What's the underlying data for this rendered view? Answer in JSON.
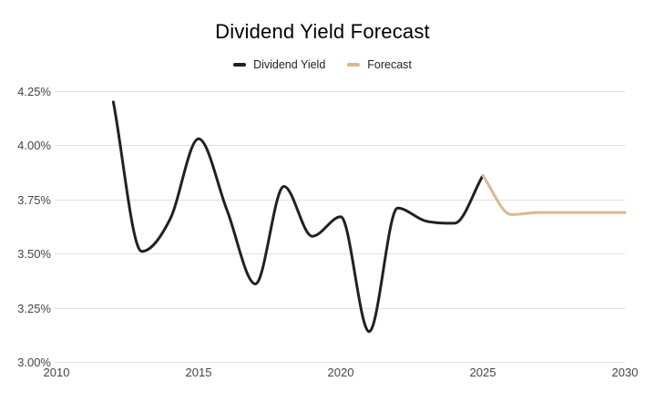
{
  "chart_data": {
    "type": "line",
    "title": "Dividend Yield Forecast",
    "legend_position": "top",
    "grid": true,
    "legend": [
      {
        "label": "Dividend Yield",
        "color": "#212121"
      },
      {
        "label": "Forecast",
        "color": "#D9B991"
      }
    ],
    "x": {
      "min": 2010,
      "max": 2030,
      "ticks": [
        2010,
        2015,
        2020,
        2025,
        2030
      ]
    },
    "y": {
      "min": 3.0,
      "max": 4.25,
      "ticks": [
        {
          "value": 4.25,
          "label": "4.25%"
        },
        {
          "value": 4.0,
          "label": "4.00%"
        },
        {
          "value": 3.75,
          "label": "3.75%"
        },
        {
          "value": 3.5,
          "label": "3.50%"
        },
        {
          "value": 3.25,
          "label": "3.25%"
        },
        {
          "value": 3.0,
          "label": "3.00%"
        }
      ]
    },
    "series": [
      {
        "name": "Dividend Yield",
        "color": "#212121",
        "points": [
          {
            "x": 2012,
            "y": 4.2
          },
          {
            "x": 2013,
            "y": 3.51
          },
          {
            "x": 2014,
            "y": 3.66
          },
          {
            "x": 2015,
            "y": 4.03
          },
          {
            "x": 2016,
            "y": 3.7
          },
          {
            "x": 2017,
            "y": 3.36
          },
          {
            "x": 2018,
            "y": 3.81
          },
          {
            "x": 2019,
            "y": 3.58
          },
          {
            "x": 2020,
            "y": 3.67
          },
          {
            "x": 2021,
            "y": 3.14
          },
          {
            "x": 2022,
            "y": 3.71
          },
          {
            "x": 2023,
            "y": 3.65
          },
          {
            "x": 2024,
            "y": 3.64
          },
          {
            "x": 2025,
            "y": 3.86
          }
        ]
      },
      {
        "name": "Forecast",
        "color": "#D9B991",
        "points": [
          {
            "x": 2025,
            "y": 3.86
          },
          {
            "x": 2026,
            "y": 3.68
          },
          {
            "x": 2027,
            "y": 3.69
          },
          {
            "x": 2028,
            "y": 3.69
          },
          {
            "x": 2029,
            "y": 3.69
          },
          {
            "x": 2030,
            "y": 3.69
          }
        ]
      }
    ],
    "colors": {
      "background": "#ffffff",
      "gridline": "#e0e0e0",
      "axis_text": "#444444",
      "title_text": "#000000",
      "legend_text": "#222222"
    }
  }
}
